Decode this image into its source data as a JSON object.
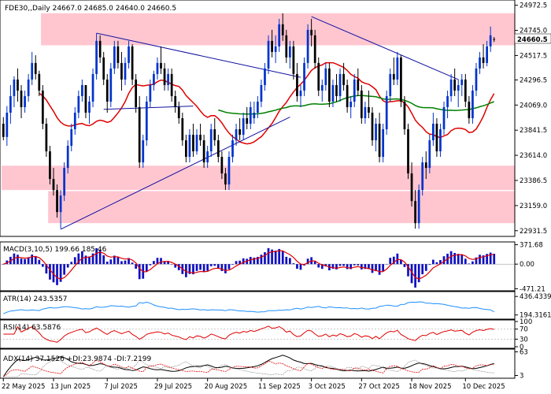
{
  "colors": {
    "background": "#ffffff",
    "zone_fill": "#ffc0cb",
    "bull_candle": "#0033cc",
    "bear_candle": "#000000",
    "ma_red": "#e00000",
    "ma_green": "#008000",
    "trendline": "#1010a0",
    "macd_hist": "#1010c0",
    "macd_signal": "#e00000",
    "atr_line": "#1e90ff",
    "rsi_line": "#e00000",
    "adx_line": "#000000",
    "dip_line": "#e00000"
  },
  "chart_data": [
    {
      "type": "candlestick",
      "header": "FDE30,,Daily  24667.0  24685.0  24640.0  24660.5",
      "symbol": "FDE30,,Daily",
      "ohlc_last": {
        "open": 24667.0,
        "high": 24685.0,
        "low": 24640.0,
        "close": 24660.5
      },
      "current_price_label": "24660.5",
      "y_ticks": [
        "24972.5",
        "24745.0",
        "24517.5",
        "24296.5",
        "24069.0",
        "23841.5",
        "23614.0",
        "23386.5",
        "23159.0",
        "22931.5"
      ],
      "ylim": [
        22880,
        25020
      ],
      "x_ticks": [
        "22 May 2025",
        "13 Jun 2025",
        "7 Jul 2025",
        "29 Jul 2025",
        "20 Aug 2025",
        "11 Sep 2025",
        "3 Oct 2025",
        "27 Oct 2025",
        "18 Nov 2025",
        "10 Dec 2025"
      ],
      "zones": [
        {
          "from": 24610,
          "to": 24900,
          "start_bar": 11
        },
        {
          "from": 23300,
          "to": 23520,
          "start_bar": 0
        },
        {
          "from": 23000,
          "to": 23290,
          "start_bar": 13
        }
      ],
      "trendlines": [
        {
          "from": [
            26,
            24720
          ],
          "to": [
            83,
            24320
          ]
        },
        {
          "from": [
            16,
            22945
          ],
          "to": [
            80,
            23960
          ]
        },
        {
          "from": [
            86,
            24870
          ],
          "to": [
            127,
            24300
          ]
        },
        {
          "from": [
            28,
            24030
          ],
          "to": [
            53,
            24060
          ]
        }
      ],
      "bars": [
        [
          23900,
          23960,
          23750,
          23780
        ],
        [
          23780,
          24060,
          23700,
          24000
        ],
        [
          24000,
          24250,
          23900,
          24150
        ],
        [
          24150,
          24330,
          24050,
          24300
        ],
        [
          24300,
          24400,
          24100,
          24200
        ],
        [
          24200,
          24250,
          23950,
          24050
        ],
        [
          24050,
          24200,
          24000,
          24150
        ],
        [
          24150,
          24350,
          24100,
          24300
        ],
        [
          24300,
          24550,
          24250,
          24450
        ],
        [
          24450,
          24520,
          24300,
          24350
        ],
        [
          24350,
          24380,
          24150,
          24200
        ],
        [
          24200,
          24250,
          23850,
          23900
        ],
        [
          23900,
          23950,
          23600,
          23650
        ],
        [
          23650,
          23700,
          23350,
          23400
        ],
        [
          23400,
          23500,
          23250,
          23300
        ],
        [
          23300,
          23350,
          23050,
          23100
        ],
        [
          23100,
          23300,
          22950,
          23250
        ],
        [
          23250,
          23550,
          23200,
          23500
        ],
        [
          23500,
          23750,
          23450,
          23700
        ],
        [
          23700,
          23900,
          23650,
          23850
        ],
        [
          23850,
          24050,
          23800,
          24000
        ],
        [
          24000,
          24200,
          23950,
          24150
        ],
        [
          24150,
          24300,
          24100,
          24250
        ],
        [
          24250,
          24250,
          23950,
          24000
        ],
        [
          24000,
          24150,
          23900,
          24100
        ],
        [
          24100,
          24400,
          24050,
          24350
        ],
        [
          24350,
          24720,
          24300,
          24650
        ],
        [
          24650,
          24700,
          24450,
          24500
        ],
        [
          24500,
          24550,
          24250,
          24300
        ],
        [
          24300,
          24350,
          24000,
          24100
        ],
        [
          24100,
          24450,
          24050,
          24400
        ],
        [
          24400,
          24650,
          24350,
          24600
        ],
        [
          24600,
          24650,
          24400,
          24450
        ],
        [
          24450,
          24550,
          24200,
          24300
        ],
        [
          24300,
          24500,
          24250,
          24450
        ],
        [
          24450,
          24650,
          24400,
          24600
        ],
        [
          24600,
          24620,
          24250,
          24300
        ],
        [
          24300,
          24350,
          24000,
          24050
        ],
        [
          24050,
          24150,
          23500,
          23550
        ],
        [
          23550,
          23800,
          23500,
          23750
        ],
        [
          23750,
          24150,
          23700,
          24100
        ],
        [
          24100,
          24300,
          24050,
          24250
        ],
        [
          24250,
          24380,
          24200,
          24350
        ],
        [
          24350,
          24500,
          24300,
          24450
        ],
        [
          24450,
          24600,
          24350,
          24400
        ],
        [
          24400,
          24450,
          24200,
          24250
        ],
        [
          24250,
          24400,
          24200,
          24350
        ],
        [
          24350,
          24400,
          24100,
          24150
        ],
        [
          24150,
          24200,
          24000,
          24050
        ],
        [
          24050,
          24100,
          23900,
          23950
        ],
        [
          23950,
          24000,
          23700,
          23750
        ],
        [
          23750,
          23800,
          23550,
          23600
        ],
        [
          23600,
          23850,
          23550,
          23800
        ],
        [
          23800,
          23900,
          23600,
          23650
        ],
        [
          23650,
          23850,
          23620,
          23800
        ],
        [
          23800,
          23900,
          23700,
          23750
        ],
        [
          23750,
          23800,
          23500,
          23550
        ],
        [
          23550,
          23700,
          23500,
          23650
        ],
        [
          23650,
          23900,
          23600,
          23850
        ],
        [
          23850,
          23950,
          23700,
          23750
        ],
        [
          23750,
          23800,
          23550,
          23600
        ],
        [
          23600,
          23650,
          23400,
          23450
        ],
        [
          23450,
          23500,
          23300,
          23350
        ],
        [
          23350,
          23650,
          23300,
          23600
        ],
        [
          23600,
          23800,
          23550,
          23750
        ],
        [
          23750,
          23900,
          23700,
          23850
        ],
        [
          23850,
          23950,
          23750,
          23800
        ],
        [
          23800,
          24000,
          23750,
          23950
        ],
        [
          23950,
          24050,
          23850,
          23900
        ],
        [
          23900,
          24100,
          23850,
          24050
        ],
        [
          23950,
          24100,
          23900,
          24000
        ],
        [
          24000,
          24150,
          23950,
          24100
        ],
        [
          24100,
          24300,
          24050,
          24250
        ],
        [
          24250,
          24450,
          24200,
          24400
        ],
        [
          24400,
          24700,
          24350,
          24650
        ],
        [
          24650,
          24750,
          24500,
          24550
        ],
        [
          24550,
          24700,
          24450,
          24600
        ],
        [
          24600,
          24850,
          24550,
          24800
        ],
        [
          24800,
          24900,
          24650,
          24700
        ],
        [
          24700,
          24750,
          24450,
          24500
        ],
        [
          24500,
          24650,
          24400,
          24600
        ],
        [
          24600,
          24650,
          24300,
          24350
        ],
        [
          24350,
          24450,
          24100,
          24150
        ],
        [
          24150,
          24250,
          24050,
          24200
        ],
        [
          24200,
          24500,
          24150,
          24450
        ],
        [
          24450,
          24800,
          24400,
          24750
        ],
        [
          24750,
          24850,
          24600,
          24700
        ],
        [
          24700,
          24750,
          24400,
          24450
        ],
        [
          24450,
          24500,
          24150,
          24200
        ],
        [
          24200,
          24300,
          24100,
          24250
        ],
        [
          24250,
          24450,
          24200,
          24400
        ],
        [
          24400,
          24450,
          24050,
          24100
        ],
        [
          24100,
          24300,
          24050,
          24250
        ],
        [
          24250,
          24350,
          24100,
          24150
        ],
        [
          24150,
          24400,
          24100,
          24350
        ],
        [
          24350,
          24450,
          24200,
          24250
        ],
        [
          24250,
          24300,
          24000,
          24050
        ],
        [
          24050,
          24150,
          23950,
          24100
        ],
        [
          24100,
          24350,
          24050,
          24300
        ],
        [
          24300,
          24400,
          24150,
          24200
        ],
        [
          24200,
          24250,
          23900,
          23950
        ],
        [
          23950,
          24100,
          23900,
          24050
        ],
        [
          24050,
          24200,
          23950,
          24000
        ],
        [
          24000,
          24050,
          23700,
          23750
        ],
        [
          23750,
          23950,
          23650,
          23900
        ],
        [
          23900,
          24000,
          23550,
          23600
        ],
        [
          23600,
          23900,
          23550,
          23850
        ],
        [
          23850,
          24200,
          23800,
          24150
        ],
        [
          24150,
          24400,
          24100,
          24350
        ],
        [
          24350,
          24500,
          24250,
          24300
        ],
        [
          24300,
          24550,
          24250,
          24500
        ],
        [
          24500,
          24520,
          24050,
          24100
        ],
        [
          24100,
          24150,
          23800,
          23850
        ],
        [
          23850,
          23900,
          23400,
          23450
        ],
        [
          23450,
          23550,
          23150,
          23200
        ],
        [
          23200,
          23300,
          22950,
          23000
        ],
        [
          23000,
          23350,
          22950,
          23300
        ],
        [
          23300,
          23600,
          23250,
          23550
        ],
        [
          23550,
          23650,
          23400,
          23500
        ],
        [
          23500,
          23800,
          23450,
          23750
        ],
        [
          23750,
          24000,
          23700,
          23900
        ],
        [
          23900,
          23950,
          23600,
          23650
        ],
        [
          23650,
          23900,
          23600,
          23850
        ],
        [
          23850,
          24100,
          23800,
          24050
        ],
        [
          24050,
          24200,
          23950,
          24150
        ],
        [
          24150,
          24350,
          24100,
          24300
        ],
        [
          24300,
          24400,
          24150,
          24200
        ],
        [
          24200,
          24300,
          24050,
          24250
        ],
        [
          24250,
          24350,
          24150,
          24300
        ],
        [
          24300,
          24350,
          24050,
          24100
        ],
        [
          24100,
          24150,
          23900,
          23950
        ],
        [
          23950,
          24250,
          23900,
          24200
        ],
        [
          24200,
          24450,
          24150,
          24400
        ],
        [
          24400,
          24550,
          24350,
          24500
        ],
        [
          24500,
          24620,
          24400,
          24450
        ],
        [
          24450,
          24650,
          24420,
          24600
        ],
        [
          24600,
          24780,
          24550,
          24700
        ],
        [
          24667,
          24685,
          24640,
          24660.5
        ]
      ]
    },
    {
      "type": "bar",
      "label": "MACD(3,10,5) 199.66 185.46",
      "y_ticks": [
        "371.68",
        "0.00",
        "-471.21"
      ],
      "ylim": [
        -480,
        380
      ]
    },
    {
      "type": "line",
      "label": "ATR(14) 243.5357",
      "y_ticks": [
        "436.4339",
        "194.3161"
      ],
      "ylim": [
        160,
        480
      ]
    },
    {
      "type": "line",
      "label": "RSI(14) 63.5876",
      "y_ticks": [
        "100",
        "70",
        "30",
        "0"
      ],
      "ylim": [
        0,
        100
      ]
    },
    {
      "type": "line",
      "label": "ADX(14) 37.1526 +DI:23.9874 -DI:7.2199",
      "y_ticks": [
        "63",
        "3"
      ],
      "ylim": [
        0,
        66
      ]
    }
  ]
}
